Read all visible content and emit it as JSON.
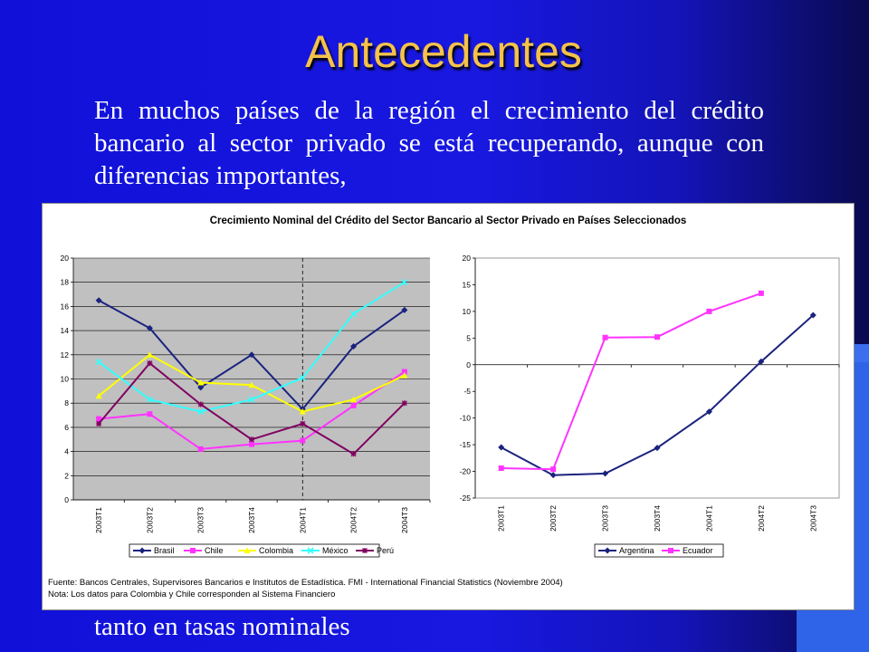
{
  "slide": {
    "title": "Antecedentes",
    "intro": "En muchos países de la región el crecimiento del crédito bancario al sector privado se está recuperando, aunque con diferencias importantes,",
    "footer": "tanto en tasas nominales"
  },
  "figure": {
    "title": "Crecimiento Nominal del Crédito del Sector Bancario al Sector Privado en Países Seleccionados",
    "source": "Fuente: Bancos Centrales, Supervisores Bancarios e Institutos de Estadística. FMI - International Financial Statistics (Noviembre 2004)",
    "note": "Nota: Los datos para Colombia y Chile corresponden al Sistema Financiero"
  },
  "chart_data": [
    {
      "type": "line",
      "categories": [
        "2003T1",
        "2003T2",
        "2003T3",
        "2003T4",
        "2004T1",
        "2004T2",
        "2004T3"
      ],
      "ylim": [
        0,
        20
      ],
      "yticks": [
        0,
        2,
        4,
        6,
        8,
        10,
        12,
        14,
        16,
        18,
        20
      ],
      "grid": true,
      "vline_at": "2004T1",
      "legend": "bottom",
      "series": [
        {
          "name": "Brasil",
          "color": "#1a237e",
          "marker": "diamond",
          "values": [
            16.5,
            14.2,
            9.3,
            12.0,
            7.5,
            12.7,
            15.7
          ]
        },
        {
          "name": "Chile",
          "color": "#ff33ff",
          "marker": "square",
          "values": [
            6.7,
            7.1,
            4.2,
            4.6,
            4.9,
            7.8,
            10.6
          ]
        },
        {
          "name": "Colombia",
          "color": "#ffff00",
          "marker": "triangle",
          "values": [
            8.6,
            12.0,
            9.7,
            9.5,
            7.3,
            8.3,
            10.3
          ]
        },
        {
          "name": "México",
          "color": "#33ffff",
          "marker": "x",
          "values": [
            11.4,
            8.3,
            7.3,
            8.3,
            10.1,
            15.4,
            18.0
          ]
        },
        {
          "name": "Perú",
          "color": "#800060",
          "marker": "star",
          "values": [
            6.3,
            11.3,
            7.9,
            5.0,
            6.3,
            3.8,
            8.0
          ]
        }
      ]
    },
    {
      "type": "line",
      "categories": [
        "2003T1",
        "2003T2",
        "2003T3",
        "2003T4",
        "2004T1",
        "2004T2",
        "2004T3"
      ],
      "ylim": [
        -25,
        20
      ],
      "yticks": [
        -25,
        -20,
        -15,
        -10,
        -5,
        0,
        5,
        10,
        15,
        20
      ],
      "grid": false,
      "legend": "bottom",
      "series": [
        {
          "name": "Argentina",
          "color": "#1a237e",
          "marker": "diamond",
          "values": [
            -15.5,
            -20.7,
            -20.4,
            -15.6,
            -8.8,
            0.6,
            9.3
          ]
        },
        {
          "name": "Ecuador",
          "color": "#ff33ff",
          "marker": "square",
          "values": [
            -19.4,
            -19.6,
            5.1,
            5.2,
            10.0,
            13.4,
            null
          ]
        }
      ]
    }
  ]
}
